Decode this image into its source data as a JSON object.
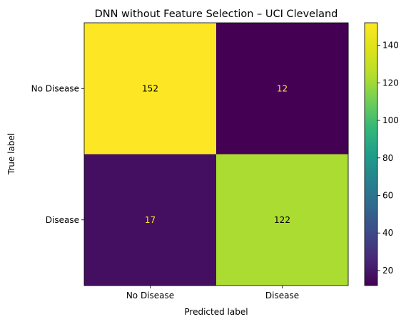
{
  "chart_data": {
    "type": "heatmap",
    "title": "DNN without Feature Selection – UCI Cleveland",
    "xlabel": "Predicted label",
    "ylabel": "True label",
    "x_categories": [
      "No Disease",
      "Disease"
    ],
    "y_categories": [
      "No Disease",
      "Disease"
    ],
    "matrix": [
      [
        152,
        12
      ],
      [
        17,
        122
      ]
    ],
    "colormap": "viridis",
    "colorbar": {
      "vmin": 12,
      "vmax": 152,
      "ticks": [
        20,
        40,
        60,
        80,
        100,
        120,
        140
      ]
    },
    "colors": {
      "cell_text_on_dark": "#fde725",
      "cell_text_on_light": "#000000"
    }
  }
}
